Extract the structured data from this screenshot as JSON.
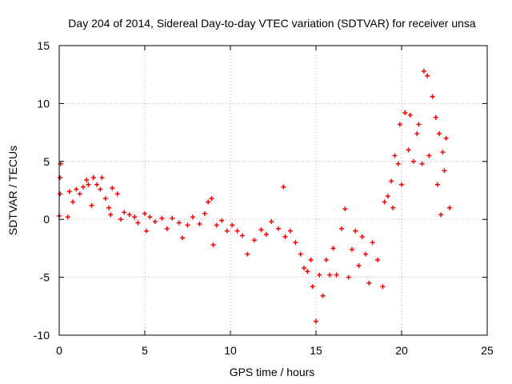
{
  "chart_data": {
    "type": "scatter",
    "title": "Day 204 of 2014, Sidereal Day-to-day VTEC variation (SDTVAR) for receiver unsa",
    "xlabel": "GPS time / hours",
    "ylabel": "SDTVAR / TECUs",
    "xlim": [
      0,
      25
    ],
    "ylim": [
      -10,
      15
    ],
    "xticks": [
      "0",
      "5",
      "10",
      "15",
      "20",
      "25"
    ],
    "yticks": [
      "-10",
      "-5",
      "0",
      "5",
      "10",
      "15"
    ],
    "grid": true,
    "marker": "+",
    "color": "#ff0000",
    "series": [
      {
        "name": "SDTVAR",
        "points": [
          [
            0.0,
            0.3
          ],
          [
            0.05,
            2.2
          ],
          [
            0.05,
            3.6
          ],
          [
            0.08,
            4.8
          ],
          [
            0.5,
            0.2
          ],
          [
            0.6,
            2.4
          ],
          [
            0.8,
            1.5
          ],
          [
            1.0,
            2.6
          ],
          [
            1.2,
            2.2
          ],
          [
            1.4,
            2.8
          ],
          [
            1.6,
            3.4
          ],
          [
            1.7,
            3.0
          ],
          [
            1.9,
            1.2
          ],
          [
            2.0,
            3.6
          ],
          [
            2.2,
            3.0
          ],
          [
            2.4,
            2.6
          ],
          [
            2.5,
            3.6
          ],
          [
            2.7,
            1.8
          ],
          [
            2.9,
            1.0
          ],
          [
            3.0,
            0.4
          ],
          [
            3.1,
            2.7
          ],
          [
            3.4,
            2.2
          ],
          [
            3.6,
            0.0
          ],
          [
            3.8,
            0.6
          ],
          [
            4.1,
            0.4
          ],
          [
            4.4,
            0.2
          ],
          [
            4.6,
            -0.3
          ],
          [
            5.0,
            0.5
          ],
          [
            5.1,
            -1.0
          ],
          [
            5.3,
            0.2
          ],
          [
            5.6,
            -0.2
          ],
          [
            6.0,
            0.1
          ],
          [
            6.3,
            -0.8
          ],
          [
            6.6,
            0.1
          ],
          [
            7.0,
            -0.3
          ],
          [
            7.2,
            -1.6
          ],
          [
            7.5,
            -0.5
          ],
          [
            7.8,
            0.2
          ],
          [
            8.2,
            -0.4
          ],
          [
            8.5,
            0.5
          ],
          [
            8.7,
            1.5
          ],
          [
            8.9,
            1.8
          ],
          [
            9.0,
            -2.2
          ],
          [
            9.2,
            -0.5
          ],
          [
            9.5,
            -0.1
          ],
          [
            9.8,
            -1.0
          ],
          [
            10.1,
            -0.5
          ],
          [
            10.4,
            -1.0
          ],
          [
            10.7,
            -1.4
          ],
          [
            11.0,
            -3.0
          ],
          [
            11.4,
            -1.8
          ],
          [
            11.8,
            -0.9
          ],
          [
            12.1,
            -1.3
          ],
          [
            12.4,
            -0.2
          ],
          [
            12.8,
            -0.8
          ],
          [
            13.1,
            2.8
          ],
          [
            13.2,
            -1.5
          ],
          [
            13.5,
            -1.0
          ],
          [
            13.8,
            -2.0
          ],
          [
            14.1,
            -3.0
          ],
          [
            14.3,
            -4.2
          ],
          [
            14.5,
            -4.5
          ],
          [
            14.7,
            -3.5
          ],
          [
            14.8,
            -5.8
          ],
          [
            15.0,
            -8.8
          ],
          [
            15.2,
            -4.8
          ],
          [
            15.4,
            -6.6
          ],
          [
            15.6,
            -3.5
          ],
          [
            15.8,
            -4.8
          ],
          [
            16.0,
            -2.5
          ],
          [
            16.2,
            -4.8
          ],
          [
            16.5,
            -0.8
          ],
          [
            16.7,
            0.9
          ],
          [
            16.9,
            -5.0
          ],
          [
            17.1,
            -2.6
          ],
          [
            17.3,
            -1.0
          ],
          [
            17.5,
            -4.0
          ],
          [
            17.7,
            -1.5
          ],
          [
            17.9,
            -3.0
          ],
          [
            18.1,
            -5.5
          ],
          [
            18.3,
            -2.0
          ],
          [
            18.6,
            -3.5
          ],
          [
            18.9,
            -5.8
          ],
          [
            19.0,
            1.5
          ],
          [
            19.2,
            2.0
          ],
          [
            19.4,
            3.3
          ],
          [
            19.5,
            1.0
          ],
          [
            19.6,
            5.5
          ],
          [
            19.8,
            4.8
          ],
          [
            19.9,
            8.2
          ],
          [
            20.0,
            3.0
          ],
          [
            20.2,
            9.2
          ],
          [
            20.4,
            6.0
          ],
          [
            20.5,
            9.0
          ],
          [
            20.7,
            5.0
          ],
          [
            20.9,
            7.4
          ],
          [
            21.0,
            8.2
          ],
          [
            21.2,
            4.8
          ],
          [
            21.3,
            12.8
          ],
          [
            21.5,
            12.4
          ],
          [
            21.6,
            5.5
          ],
          [
            21.8,
            10.6
          ],
          [
            22.0,
            8.8
          ],
          [
            22.1,
            3.0
          ],
          [
            22.2,
            7.4
          ],
          [
            22.3,
            0.4
          ],
          [
            22.4,
            5.8
          ],
          [
            22.5,
            4.2
          ],
          [
            22.6,
            7.0
          ],
          [
            22.8,
            1.0
          ]
        ]
      }
    ]
  }
}
